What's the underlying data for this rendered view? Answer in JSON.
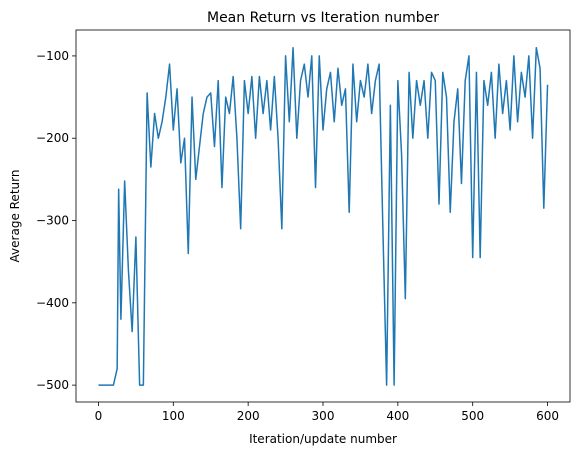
{
  "chart_data": {
    "type": "line",
    "title": "Mean Return vs Iteration number",
    "x_label": "Iteration/update number",
    "y_label": "Average Return",
    "xlim": [
      -30,
      630
    ],
    "ylim": [
      -520.5,
      -68.5
    ],
    "xticks": [
      0,
      100,
      200,
      300,
      400,
      500,
      600
    ],
    "yticks": [
      {
        "value": -500,
        "label": "−500"
      },
      {
        "value": -400,
        "label": "−400"
      },
      {
        "value": -300,
        "label": "−300"
      },
      {
        "value": -200,
        "label": "−200"
      },
      {
        "value": -100,
        "label": "−100"
      }
    ],
    "grid": false,
    "x": [
      0,
      5,
      10,
      15,
      20,
      25,
      27,
      30,
      35,
      40,
      45,
      50,
      55,
      60,
      65,
      70,
      75,
      80,
      85,
      90,
      95,
      100,
      105,
      110,
      115,
      120,
      125,
      130,
      135,
      140,
      145,
      150,
      155,
      160,
      165,
      170,
      175,
      180,
      185,
      190,
      195,
      200,
      205,
      210,
      215,
      220,
      225,
      230,
      235,
      240,
      245,
      250,
      255,
      260,
      265,
      270,
      275,
      280,
      285,
      290,
      295,
      300,
      305,
      310,
      315,
      320,
      325,
      330,
      335,
      340,
      345,
      350,
      355,
      360,
      365,
      370,
      375,
      380,
      385,
      390,
      395,
      400,
      405,
      410,
      415,
      420,
      425,
      430,
      435,
      440,
      445,
      450,
      455,
      460,
      465,
      470,
      475,
      480,
      485,
      490,
      495,
      500,
      505,
      510,
      515,
      520,
      525,
      530,
      535,
      540,
      545,
      550,
      555,
      560,
      565,
      570,
      575,
      580,
      585,
      590,
      595,
      600
    ],
    "series": [
      {
        "name": "Average Return",
        "color": "#1f77b4",
        "values": [
          -500,
          -500,
          -500,
          -500,
          -500,
          -480,
          -262,
          -420,
          -252,
          -360,
          -435,
          -320,
          -500,
          -500,
          -145,
          -235,
          -170,
          -200,
          -180,
          -150,
          -110,
          -190,
          -140,
          -230,
          -200,
          -340,
          -150,
          -250,
          -210,
          -170,
          -150,
          -145,
          -210,
          -130,
          -260,
          -150,
          -170,
          -125,
          -200,
          -310,
          -130,
          -170,
          -125,
          -200,
          -125,
          -170,
          -130,
          -190,
          -125,
          -200,
          -310,
          -100,
          -180,
          -90,
          -200,
          -130,
          -110,
          -150,
          -100,
          -260,
          -100,
          -190,
          -140,
          -120,
          -180,
          -115,
          -160,
          -140,
          -290,
          -110,
          -180,
          -130,
          -150,
          -110,
          -170,
          -130,
          -110,
          -310,
          -500,
          -160,
          -500,
          -130,
          -220,
          -395,
          -120,
          -200,
          -130,
          -160,
          -130,
          -200,
          -120,
          -130,
          -280,
          -120,
          -150,
          -290,
          -180,
          -140,
          -255,
          -130,
          -100,
          -345,
          -120,
          -345,
          -130,
          -160,
          -120,
          -200,
          -110,
          -170,
          -130,
          -190,
          -100,
          -180,
          -120,
          -150,
          -100,
          -200,
          -90,
          -115,
          -285,
          -135
        ]
      }
    ]
  }
}
